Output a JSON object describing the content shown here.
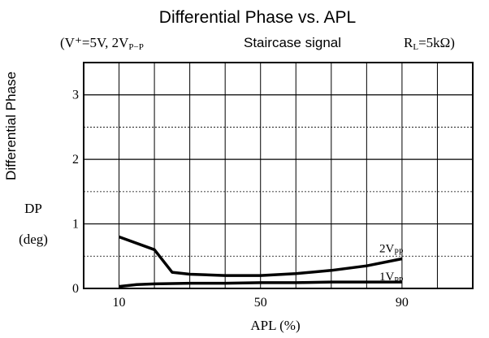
{
  "chart_data": {
    "type": "line",
    "title": "Differential Phase vs. APL",
    "subtitle": {
      "conditions_left": "(V⁺=5V,  2V",
      "conditions_left_sub": "P−P",
      "signal": "Staircase signal",
      "load": "R",
      "load_sub": "L",
      "load_value": "=5kΩ)"
    },
    "ylabel_top": "Differential Phase",
    "ylabel_symbol": "DP",
    "ylabel_unit": "(deg)",
    "xlabel": "APL (%)",
    "x_ticks": [
      "10",
      "50",
      "90"
    ],
    "y_ticks": [
      "0",
      "1",
      "2",
      "3"
    ],
    "xlim": [
      0,
      110
    ],
    "ylim": [
      0,
      3.5
    ],
    "grid": true,
    "series": [
      {
        "name": "2V",
        "name_sub": "PP",
        "color": "#000000",
        "x": [
          10,
          20,
          25,
          30,
          40,
          50,
          60,
          70,
          80,
          90
        ],
        "y": [
          0.8,
          0.6,
          0.25,
          0.22,
          0.2,
          0.2,
          0.23,
          0.28,
          0.35,
          0.46
        ]
      },
      {
        "name": "1V",
        "name_sub": "PP",
        "color": "#000000",
        "x": [
          10,
          15,
          20,
          30,
          40,
          50,
          60,
          70,
          80,
          90
        ],
        "y": [
          0.03,
          0.06,
          0.07,
          0.08,
          0.08,
          0.09,
          0.09,
          0.1,
          0.1,
          0.1
        ]
      }
    ]
  }
}
